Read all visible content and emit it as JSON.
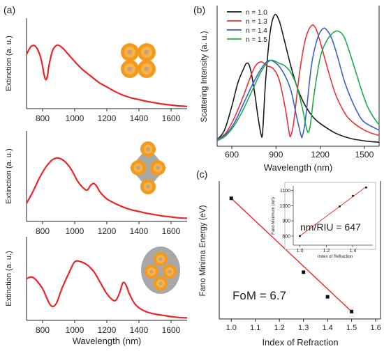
{
  "panel_labels": {
    "a": "(a)",
    "b": "(b)",
    "c": "(c)"
  },
  "colors": {
    "extinction_curve": "#e8252a",
    "shell_outer": "#f39a1c",
    "shell_mid": "#f7b24a",
    "core": "#c9a27a",
    "matrix": "#a8a8a8",
    "fit_line": "#e8252a",
    "inset_line": "#e8252a",
    "markers": "#111111",
    "series_n10": "#1a1a1a",
    "series_n13": "#e8303a",
    "series_n14": "#3b5fc8",
    "series_n15": "#1fa84a"
  },
  "icons": [
    "tetramer-nanoshell-icon",
    "tetramer-in-matrix-icon",
    "tetramer-in-ellipsoid-icon"
  ],
  "chart_data": [
    {
      "id": "a1",
      "type": "line",
      "ylabel": "Extinction (a. u.)",
      "xlabel": "",
      "xticks": [
        800,
        1000,
        1200,
        1400,
        1600
      ],
      "xlim": [
        700,
        1700
      ],
      "ylim": [
        0,
        1
      ],
      "series": [
        {
          "x": [
            700,
            730,
            760,
            790,
            810,
            820,
            830,
            840,
            860,
            880,
            900,
            930,
            960,
            1000,
            1050,
            1100,
            1150,
            1200,
            1250,
            1300,
            1350,
            1400,
            1450,
            1500,
            1550,
            1600,
            1650,
            1700
          ],
          "values": [
            0.6,
            0.69,
            0.68,
            0.55,
            0.37,
            0.32,
            0.36,
            0.48,
            0.63,
            0.69,
            0.7,
            0.66,
            0.6,
            0.52,
            0.43,
            0.36,
            0.29,
            0.24,
            0.19,
            0.15,
            0.12,
            0.1,
            0.08,
            0.065,
            0.05,
            0.04,
            0.03,
            0.025
          ]
        }
      ]
    },
    {
      "id": "a2",
      "type": "line",
      "ylabel": "Extinction (a. u.)",
      "xlabel": "",
      "xticks": [
        800,
        1000,
        1200,
        1400,
        1600
      ],
      "xlim": [
        700,
        1700
      ],
      "ylim": [
        0,
        1
      ],
      "series": [
        {
          "x": [
            700,
            740,
            780,
            820,
            860,
            900,
            940,
            980,
            1020,
            1060,
            1080,
            1100,
            1120,
            1140,
            1160,
            1200,
            1250,
            1300,
            1350,
            1400,
            1450,
            1500,
            1550,
            1600,
            1650,
            1700
          ],
          "values": [
            0.2,
            0.33,
            0.48,
            0.6,
            0.68,
            0.7,
            0.66,
            0.57,
            0.44,
            0.36,
            0.35,
            0.4,
            0.42,
            0.38,
            0.32,
            0.25,
            0.2,
            0.16,
            0.13,
            0.11,
            0.09,
            0.075,
            0.06,
            0.05,
            0.04,
            0.035
          ]
        }
      ]
    },
    {
      "id": "a3",
      "type": "line",
      "ylabel": "Extinction (a. u.)",
      "xlabel": "Wavelength (nm)",
      "xticks": [
        800,
        1000,
        1200,
        1400,
        1600
      ],
      "xlim": [
        700,
        1700
      ],
      "ylim": [
        0,
        1
      ],
      "series": [
        {
          "x": [
            700,
            730,
            750,
            770,
            800,
            830,
            850,
            870,
            890,
            920,
            960,
            1000,
            1040,
            1080,
            1120,
            1160,
            1200,
            1240,
            1260,
            1280,
            1300,
            1320,
            1340,
            1370,
            1400,
            1450,
            1500,
            1550,
            1600,
            1650,
            1700
          ],
          "values": [
            0.5,
            0.52,
            0.5,
            0.46,
            0.38,
            0.25,
            0.18,
            0.17,
            0.22,
            0.38,
            0.55,
            0.7,
            0.7,
            0.66,
            0.58,
            0.45,
            0.32,
            0.24,
            0.25,
            0.33,
            0.45,
            0.42,
            0.32,
            0.21,
            0.15,
            0.1,
            0.075,
            0.06,
            0.045,
            0.035,
            0.03
          ]
        }
      ]
    },
    {
      "id": "b",
      "type": "line",
      "ylabel": "Scattering Intensity (a. u.)",
      "xlabel": "Wavelength (nm)",
      "xticks": [
        600,
        900,
        1200,
        1500
      ],
      "xlim": [
        500,
        1600
      ],
      "ylim": [
        0,
        1.05
      ],
      "legend_position": "top-left",
      "series": [
        {
          "name": "n = 1.0",
          "x": [
            500,
            550,
            600,
            640,
            680,
            700,
            720,
            740,
            760,
            780,
            800,
            810,
            830,
            860,
            890,
            920,
            950,
            1000,
            1050,
            1100,
            1150,
            1200,
            1300,
            1400,
            1500,
            1600
          ],
          "values": [
            0.05,
            0.12,
            0.3,
            0.47,
            0.58,
            0.62,
            0.6,
            0.5,
            0.36,
            0.2,
            0.08,
            0.12,
            0.5,
            0.85,
            0.98,
            0.94,
            0.82,
            0.6,
            0.42,
            0.3,
            0.22,
            0.17,
            0.1,
            0.06,
            0.04,
            0.03
          ]
        },
        {
          "name": "n = 1.3",
          "x": [
            500,
            560,
            620,
            680,
            720,
            760,
            800,
            840,
            880,
            920,
            960,
            990,
            1000,
            1020,
            1060,
            1100,
            1140,
            1170,
            1200,
            1250,
            1300,
            1350,
            1400,
            1500,
            1600
          ],
          "values": [
            0.05,
            0.1,
            0.22,
            0.38,
            0.5,
            0.6,
            0.63,
            0.6,
            0.58,
            0.5,
            0.3,
            0.1,
            0.08,
            0.18,
            0.55,
            0.8,
            0.9,
            0.88,
            0.78,
            0.58,
            0.4,
            0.28,
            0.2,
            0.12,
            0.08
          ]
        },
        {
          "name": "n = 1.4",
          "x": [
            500,
            560,
            620,
            680,
            740,
            800,
            850,
            900,
            950,
            1000,
            1040,
            1070,
            1080,
            1100,
            1140,
            1180,
            1220,
            1250,
            1280,
            1320,
            1360,
            1400,
            1450,
            1500,
            1600
          ],
          "values": [
            0.05,
            0.09,
            0.18,
            0.32,
            0.46,
            0.58,
            0.64,
            0.62,
            0.55,
            0.42,
            0.22,
            0.08,
            0.08,
            0.2,
            0.6,
            0.8,
            0.88,
            0.86,
            0.8,
            0.66,
            0.5,
            0.38,
            0.26,
            0.18,
            0.12
          ]
        },
        {
          "name": "n = 1.5",
          "x": [
            500,
            560,
            620,
            680,
            740,
            800,
            860,
            920,
            960,
            1000,
            1040,
            1080,
            1110,
            1130,
            1160,
            1200,
            1240,
            1280,
            1320,
            1360,
            1400,
            1440,
            1480,
            1520,
            1560,
            1600
          ],
          "values": [
            0.04,
            0.08,
            0.16,
            0.28,
            0.42,
            0.56,
            0.64,
            0.62,
            0.6,
            0.55,
            0.45,
            0.28,
            0.12,
            0.14,
            0.4,
            0.66,
            0.78,
            0.84,
            0.86,
            0.82,
            0.7,
            0.56,
            0.42,
            0.3,
            0.22,
            0.16
          ]
        }
      ]
    },
    {
      "id": "c",
      "type": "scatter",
      "ylabel": "Fano Minima Energy (eV)",
      "xlabel": "Index of Refraction",
      "xticks": [
        1.0,
        1.1,
        1.2,
        1.3,
        1.4,
        1.5,
        1.6
      ],
      "xlim": [
        0.95,
        1.62
      ],
      "ylim": [
        1.06,
        1.62
      ],
      "annotation": "FoM = 6.7",
      "points": {
        "x": [
          1.0,
          1.3,
          1.4,
          1.5
        ],
        "values": [
          1.55,
          1.25,
          1.15,
          1.09
        ]
      },
      "fit_line": {
        "x": [
          1.0,
          1.5
        ],
        "values": [
          1.55,
          1.09
        ]
      },
      "inset": {
        "ylabel": "Fano Minimum (nm)",
        "xlabel": "Index of Refraction",
        "xticks": [
          1.0,
          1.2,
          1.4
        ],
        "yticks": [
          800,
          900,
          1000,
          1100
        ],
        "xlim": [
          0.95,
          1.55
        ],
        "ylim": [
          740,
          1130
        ],
        "annotation": "nm/RIU = 647",
        "points": {
          "x": [
            1.0,
            1.3,
            1.4,
            1.5
          ],
          "values": [
            800,
            995,
            1065,
            1120
          ]
        },
        "fit_line": {
          "x": [
            1.0,
            1.5
          ],
          "values": [
            800,
            1125
          ]
        }
      }
    }
  ]
}
